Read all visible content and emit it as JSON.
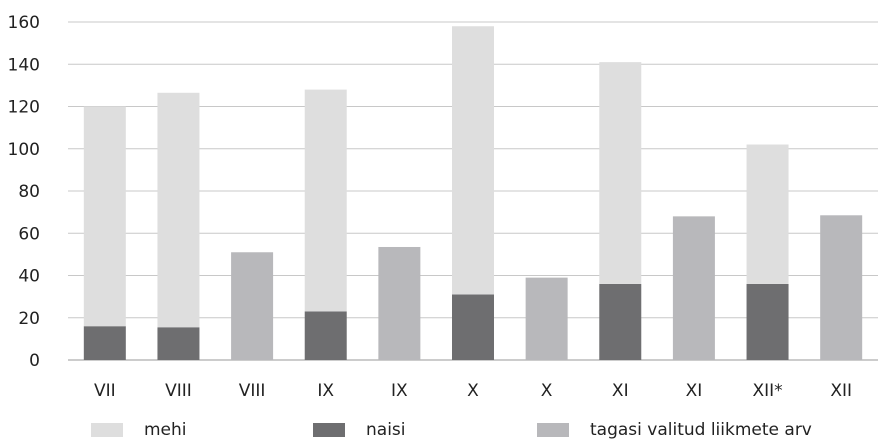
{
  "chart_data": {
    "type": "bar",
    "title": "",
    "xlabel": "",
    "ylabel": "",
    "ylim": [
      0,
      160
    ],
    "yticks": [
      "0",
      "20",
      "40",
      "60",
      "80",
      "100",
      "120",
      "140",
      "160"
    ],
    "grid": true,
    "legend_position": "bottom",
    "categories": [
      "VII",
      "VIII",
      "VIII",
      "IX",
      "IX",
      "X",
      "X",
      "XI",
      "XI",
      "XII*",
      "XII"
    ],
    "series": [
      {
        "name": "mehi",
        "color": "#dedede",
        "values": [
          104,
          111,
          0,
          105,
          0,
          127,
          0,
          105,
          0,
          66,
          0
        ]
      },
      {
        "name": "naisi",
        "color": "#6e6e70",
        "values": [
          16,
          15.5,
          0,
          23,
          0,
          31,
          0,
          36,
          0,
          36,
          0
        ]
      },
      {
        "name": "tagasi valitud liikmete arv",
        "color": "#b8b8bb",
        "values": [
          0,
          0,
          51,
          0,
          53.5,
          0,
          39,
          0,
          68,
          0,
          68.5
        ]
      }
    ],
    "stack_order": [
      "naisi",
      "mehi",
      "tagasi valitud liikmete arv"
    ]
  }
}
